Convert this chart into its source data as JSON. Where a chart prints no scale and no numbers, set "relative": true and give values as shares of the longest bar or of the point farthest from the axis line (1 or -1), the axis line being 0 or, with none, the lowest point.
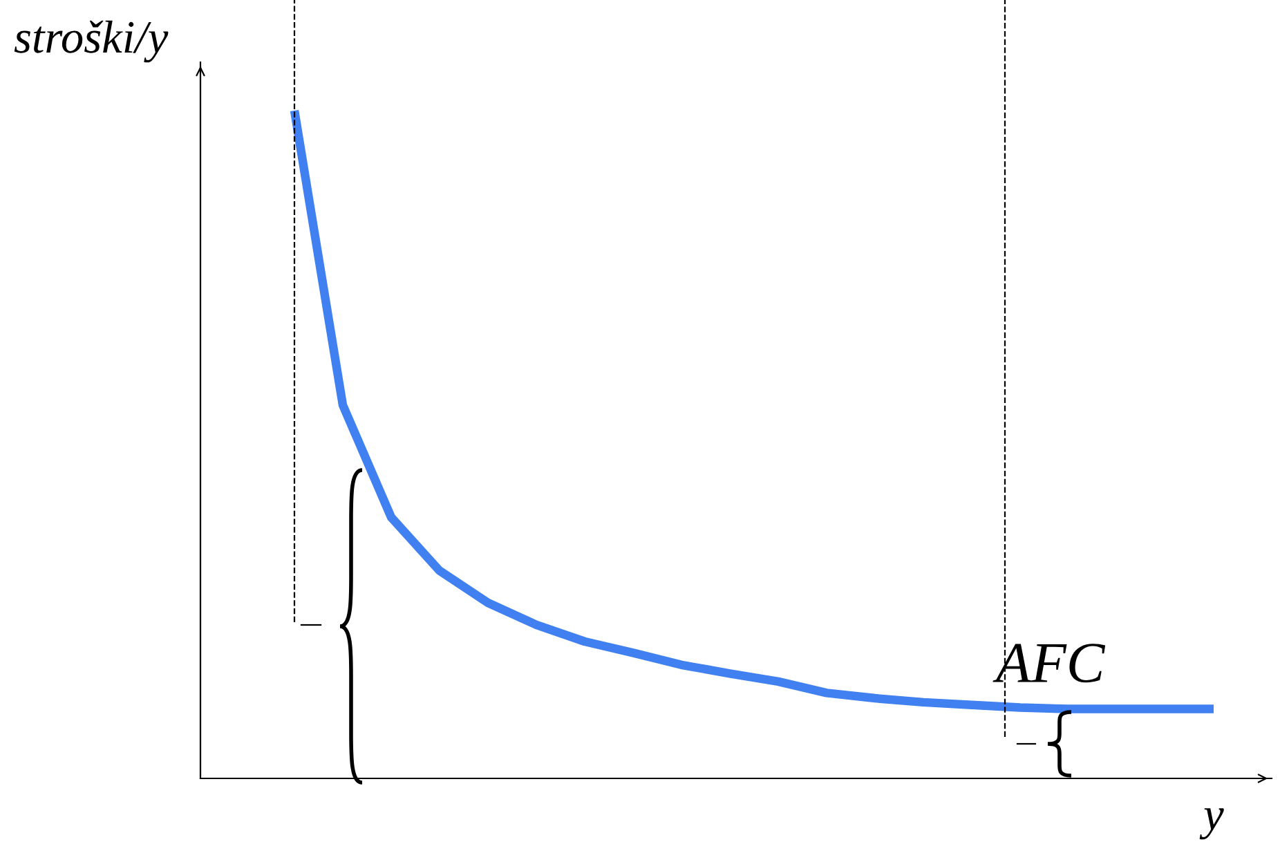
{
  "chart_data": {
    "type": "line",
    "xlabel": "y",
    "ylabel": "stroški/y",
    "categories": [
      null,
      null,
      null,
      null,
      null,
      null,
      null,
      null,
      null,
      null,
      null,
      null,
      null,
      null,
      null,
      null,
      null,
      null,
      null,
      null
    ],
    "series": [
      {
        "name": "AFC",
        "color": "#4080f0",
        "values": [
          1,
          0.559,
          0.391,
          0.311,
          0.263,
          0.23,
          0.205,
          0.188,
          0.17,
          0.157,
          0.145,
          0.128,
          0.12,
          0.114,
          0.11,
          0.106,
          0.104,
          0.104,
          0.104,
          0.104
        ]
      }
    ],
    "relative": true,
    "legend": false,
    "marker": "none",
    "line_style": "solid"
  }
}
